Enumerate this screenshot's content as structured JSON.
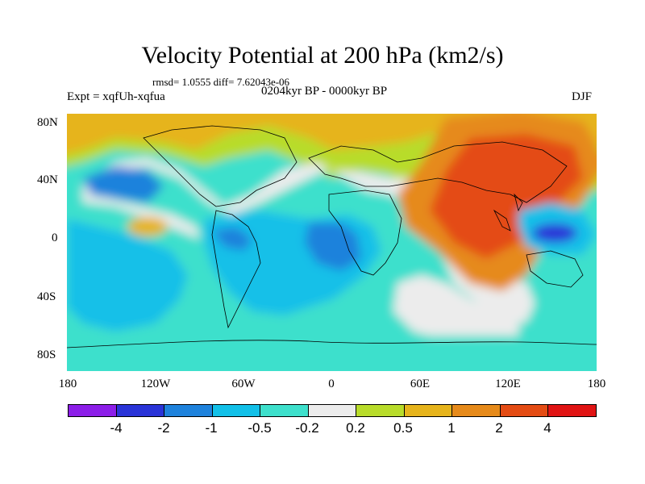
{
  "title": "Velocity Potential at 200 hPa (km2/s)",
  "stats": "rmsd= 1.0555 diff= 7.62043e-06",
  "experiment": "Expt = xqfUh-xqfua",
  "period": "0204kyr BP - 0000kyr BP",
  "season": "DJF",
  "y_tick_labels": [
    "80N",
    "40N",
    "0",
    "40S",
    "80S"
  ],
  "x_tick_labels": [
    "180",
    "120W",
    "60W",
    "0",
    "60E",
    "120E",
    "180"
  ],
  "colorbar": {
    "levels": [
      "-4",
      "-2",
      "-1",
      "-0.5",
      "-0.2",
      "0.2",
      "0.5",
      "1",
      "2",
      "4"
    ],
    "colors": [
      "#8c1ee8",
      "#2a34d8",
      "#1e82dc",
      "#12c0e8",
      "#3ee0cc",
      "#ececec",
      "#b8dc2a",
      "#e6b41c",
      "#e68a1a",
      "#e44c14",
      "#e01414"
    ]
  }
}
